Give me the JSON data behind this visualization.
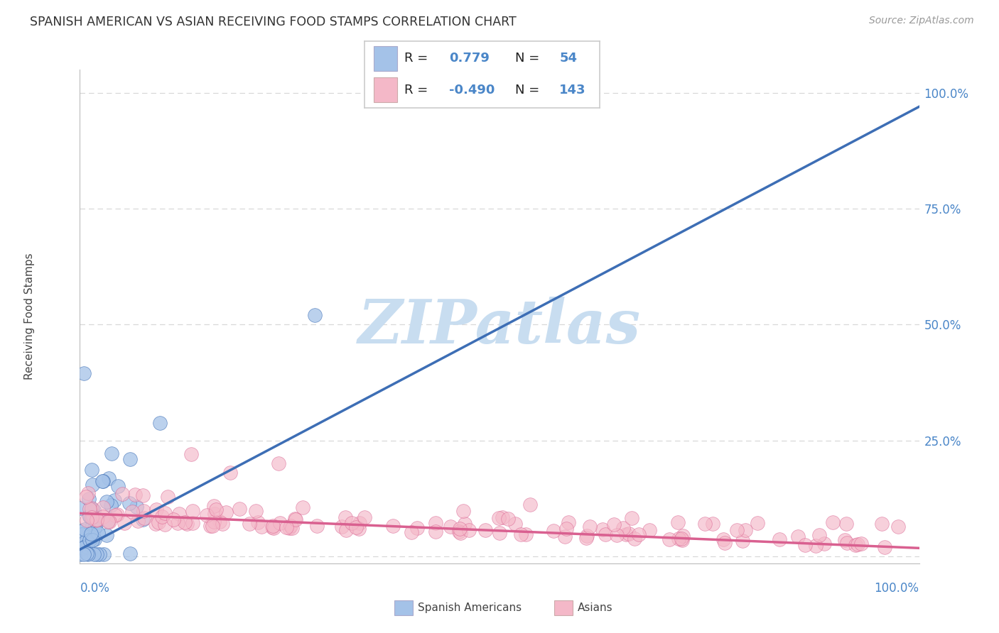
{
  "title": "SPANISH AMERICAN VS ASIAN RECEIVING FOOD STAMPS CORRELATION CHART",
  "source": "Source: ZipAtlas.com",
  "ylabel": "Receiving Food Stamps",
  "watermark_text": "ZIPatlas",
  "watermark_color": "#c8ddf0",
  "blue_color": "#a4c2e8",
  "pink_color": "#f4b8c8",
  "blue_line_color": "#3d6eb5",
  "pink_line_color": "#d96090",
  "bg_color": "#ffffff",
  "grid_color": "#d8d8d8",
  "title_color": "#333333",
  "axis_color": "#4a86c8",
  "legend_text_color": "#333333",
  "blue_line_x0": 0.0,
  "blue_line_x1": 1.0,
  "blue_line_y0": 0.015,
  "blue_line_y1": 0.97,
  "pink_line_x0": 0.0,
  "pink_line_x1": 1.0,
  "pink_line_y0": 0.093,
  "pink_line_y1": 0.018,
  "xlim": [
    0.0,
    1.0
  ],
  "ylim": [
    -0.015,
    1.05
  ],
  "yticks": [
    0.0,
    0.25,
    0.5,
    0.75,
    1.0
  ],
  "yticklabels": [
    "",
    "25.0%",
    "50.0%",
    "75.0%",
    "100.0%"
  ],
  "legend_r1": "R =  0.779",
  "legend_n1": "N =  54",
  "legend_r2": "R = -0.490",
  "legend_n2": "N = 143"
}
